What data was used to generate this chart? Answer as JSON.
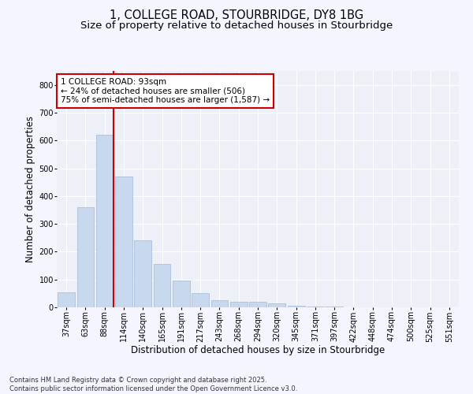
{
  "title_line1": "1, COLLEGE ROAD, STOURBRIDGE, DY8 1BG",
  "title_line2": "Size of property relative to detached houses in Stourbridge",
  "xlabel": "Distribution of detached houses by size in Stourbridge",
  "ylabel": "Number of detached properties",
  "categories": [
    "37sqm",
    "63sqm",
    "88sqm",
    "114sqm",
    "140sqm",
    "165sqm",
    "191sqm",
    "217sqm",
    "243sqm",
    "268sqm",
    "294sqm",
    "320sqm",
    "345sqm",
    "371sqm",
    "397sqm",
    "422sqm",
    "448sqm",
    "474sqm",
    "500sqm",
    "525sqm",
    "551sqm"
  ],
  "values": [
    55,
    360,
    620,
    470,
    240,
    155,
    95,
    50,
    25,
    20,
    20,
    15,
    5,
    2,
    2,
    1,
    1,
    1,
    1,
    1,
    1
  ],
  "bar_color": "#c8d8ee",
  "bar_edge_color": "#a0b8d8",
  "marker_line_color": "#cc0000",
  "marker_bar_index": 2,
  "annotation_text": "1 COLLEGE ROAD: 93sqm\n← 24% of detached houses are smaller (506)\n75% of semi-detached houses are larger (1,587) →",
  "annotation_box_color": "#ffffff",
  "annotation_box_edge_color": "#cc0000",
  "ylim": [
    0,
    850
  ],
  "yticks": [
    0,
    100,
    200,
    300,
    400,
    500,
    600,
    700,
    800
  ],
  "plot_bg_color": "#eef0f8",
  "fig_bg_color": "#f5f5ff",
  "grid_color": "#ffffff",
  "footnote": "Contains HM Land Registry data © Crown copyright and database right 2025.\nContains public sector information licensed under the Open Government Licence v3.0.",
  "title_fontsize": 10.5,
  "subtitle_fontsize": 9.5,
  "axis_label_fontsize": 8.5,
  "tick_fontsize": 7,
  "annotation_fontsize": 7.5,
  "footnote_fontsize": 6
}
